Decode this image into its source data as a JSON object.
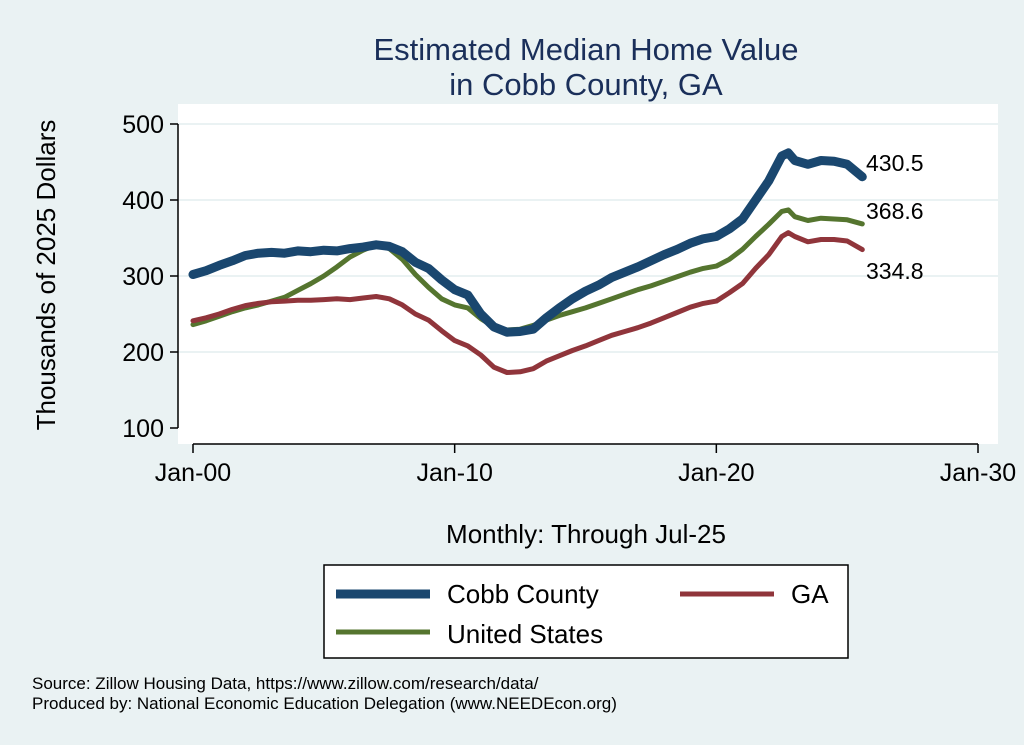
{
  "chart_data": {
    "type": "line",
    "title": [
      "Estimated Median Home Value",
      "in Cobb County, GA"
    ],
    "ylabel": "Thousands of 2025 Dollars",
    "xlabel": "Monthly: Through Jul-25",
    "ylim": [
      100,
      500
    ],
    "yticks": [
      100,
      200,
      300,
      400,
      500
    ],
    "xlim": [
      2000.0,
      2030.0
    ],
    "xticks": [
      {
        "year": 2000,
        "label": "Jan-00"
      },
      {
        "year": 2010,
        "label": "Jan-10"
      },
      {
        "year": 2020,
        "label": "Jan-20"
      },
      {
        "year": 2030,
        "label": "Jan-30"
      }
    ],
    "grid": true,
    "legend_position": "bottom",
    "series": [
      {
        "name": "Cobb County",
        "color": "#1a476f",
        "end_label": "430.5",
        "points": [
          [
            2000.0,
            302
          ],
          [
            2000.5,
            307
          ],
          [
            2001.0,
            314
          ],
          [
            2001.5,
            320
          ],
          [
            2002.0,
            327
          ],
          [
            2002.5,
            330
          ],
          [
            2003.0,
            331
          ],
          [
            2003.5,
            330
          ],
          [
            2004.0,
            333
          ],
          [
            2004.5,
            332
          ],
          [
            2005.0,
            334
          ],
          [
            2005.5,
            333
          ],
          [
            2006.0,
            336
          ],
          [
            2006.5,
            338
          ],
          [
            2007.0,
            341
          ],
          [
            2007.5,
            339
          ],
          [
            2008.0,
            332
          ],
          [
            2008.5,
            318
          ],
          [
            2009.0,
            310
          ],
          [
            2009.5,
            295
          ],
          [
            2010.0,
            282
          ],
          [
            2010.5,
            275
          ],
          [
            2011.0,
            250
          ],
          [
            2011.5,
            233
          ],
          [
            2012.0,
            226
          ],
          [
            2012.5,
            227
          ],
          [
            2013.0,
            230
          ],
          [
            2013.5,
            245
          ],
          [
            2014.0,
            258
          ],
          [
            2014.5,
            270
          ],
          [
            2015.0,
            280
          ],
          [
            2015.5,
            288
          ],
          [
            2016.0,
            298
          ],
          [
            2016.5,
            305
          ],
          [
            2017.0,
            312
          ],
          [
            2017.5,
            320
          ],
          [
            2018.0,
            328
          ],
          [
            2018.5,
            335
          ],
          [
            2019.0,
            343
          ],
          [
            2019.5,
            349
          ],
          [
            2020.0,
            352
          ],
          [
            2020.5,
            362
          ],
          [
            2021.0,
            375
          ],
          [
            2021.5,
            400
          ],
          [
            2022.0,
            425
          ],
          [
            2022.5,
            458
          ],
          [
            2022.75,
            462
          ],
          [
            2023.0,
            452
          ],
          [
            2023.5,
            447
          ],
          [
            2024.0,
            452
          ],
          [
            2024.5,
            451
          ],
          [
            2025.0,
            447
          ],
          [
            2025.58,
            430.5
          ]
        ]
      },
      {
        "name": "GA",
        "color": "#90353b",
        "end_label": "334.8",
        "points": [
          [
            2000.0,
            241
          ],
          [
            2000.5,
            245
          ],
          [
            2001.0,
            250
          ],
          [
            2001.5,
            256
          ],
          [
            2002.0,
            261
          ],
          [
            2002.5,
            264
          ],
          [
            2003.0,
            266
          ],
          [
            2003.5,
            267
          ],
          [
            2004.0,
            268
          ],
          [
            2004.5,
            268
          ],
          [
            2005.0,
            269
          ],
          [
            2005.5,
            270
          ],
          [
            2006.0,
            269
          ],
          [
            2006.5,
            271
          ],
          [
            2007.0,
            273
          ],
          [
            2007.5,
            270
          ],
          [
            2008.0,
            262
          ],
          [
            2008.5,
            250
          ],
          [
            2009.0,
            242
          ],
          [
            2009.5,
            228
          ],
          [
            2010.0,
            215
          ],
          [
            2010.5,
            208
          ],
          [
            2011.0,
            196
          ],
          [
            2011.5,
            180
          ],
          [
            2012.0,
            173
          ],
          [
            2012.5,
            174
          ],
          [
            2013.0,
            178
          ],
          [
            2013.5,
            188
          ],
          [
            2014.0,
            195
          ],
          [
            2014.5,
            202
          ],
          [
            2015.0,
            208
          ],
          [
            2015.5,
            215
          ],
          [
            2016.0,
            222
          ],
          [
            2016.5,
            227
          ],
          [
            2017.0,
            232
          ],
          [
            2017.5,
            238
          ],
          [
            2018.0,
            245
          ],
          [
            2018.5,
            252
          ],
          [
            2019.0,
            259
          ],
          [
            2019.5,
            264
          ],
          [
            2020.0,
            267
          ],
          [
            2020.5,
            278
          ],
          [
            2021.0,
            290
          ],
          [
            2021.5,
            310
          ],
          [
            2022.0,
            328
          ],
          [
            2022.5,
            352
          ],
          [
            2022.75,
            357
          ],
          [
            2023.0,
            352
          ],
          [
            2023.5,
            345
          ],
          [
            2024.0,
            348
          ],
          [
            2024.5,
            348
          ],
          [
            2025.0,
            346
          ],
          [
            2025.58,
            334.8
          ]
        ]
      },
      {
        "name": "United States",
        "color": "#55752f",
        "end_label": "368.6",
        "points": [
          [
            2000.0,
            236
          ],
          [
            2000.5,
            241
          ],
          [
            2001.0,
            247
          ],
          [
            2001.5,
            253
          ],
          [
            2002.0,
            258
          ],
          [
            2002.5,
            262
          ],
          [
            2003.0,
            267
          ],
          [
            2003.5,
            272
          ],
          [
            2004.0,
            281
          ],
          [
            2004.5,
            290
          ],
          [
            2005.0,
            300
          ],
          [
            2005.5,
            312
          ],
          [
            2006.0,
            325
          ],
          [
            2006.5,
            334
          ],
          [
            2007.0,
            341
          ],
          [
            2007.5,
            336
          ],
          [
            2008.0,
            322
          ],
          [
            2008.5,
            302
          ],
          [
            2009.0,
            285
          ],
          [
            2009.5,
            270
          ],
          [
            2010.0,
            262
          ],
          [
            2010.5,
            258
          ],
          [
            2011.0,
            244
          ],
          [
            2011.5,
            233
          ],
          [
            2012.0,
            229
          ],
          [
            2012.5,
            230
          ],
          [
            2013.0,
            235
          ],
          [
            2013.5,
            242
          ],
          [
            2014.0,
            248
          ],
          [
            2014.5,
            253
          ],
          [
            2015.0,
            258
          ],
          [
            2015.5,
            264
          ],
          [
            2016.0,
            270
          ],
          [
            2016.5,
            276
          ],
          [
            2017.0,
            282
          ],
          [
            2017.5,
            287
          ],
          [
            2018.0,
            293
          ],
          [
            2018.5,
            299
          ],
          [
            2019.0,
            305
          ],
          [
            2019.5,
            310
          ],
          [
            2020.0,
            313
          ],
          [
            2020.5,
            322
          ],
          [
            2021.0,
            335
          ],
          [
            2021.5,
            352
          ],
          [
            2022.0,
            368
          ],
          [
            2022.5,
            385
          ],
          [
            2022.75,
            387
          ],
          [
            2023.0,
            378
          ],
          [
            2023.5,
            373
          ],
          [
            2024.0,
            376
          ],
          [
            2024.5,
            375
          ],
          [
            2025.0,
            374
          ],
          [
            2025.58,
            368.6
          ]
        ]
      }
    ]
  },
  "legend": {
    "items": [
      {
        "name": "Cobb County",
        "color": "#1a476f"
      },
      {
        "name": "GA",
        "color": "#90353b"
      },
      {
        "name": "United States",
        "color": "#55752f"
      }
    ]
  },
  "footer": {
    "source": "Source: Zillow Housing Data, https://www.zillow.com/research/data/",
    "produced": "Produced by: National Economic Education Delegation (www.NEEDEcon.org)"
  }
}
